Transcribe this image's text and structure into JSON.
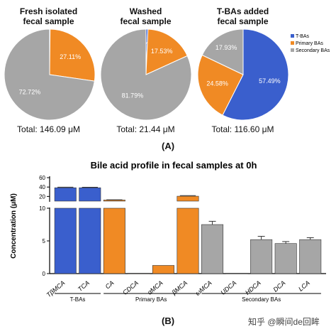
{
  "panel_a_label": "(A)",
  "panel_b_label": "(B)",
  "watermark": "知乎 @瞬间de回眸",
  "colors": {
    "tba": "#3a5fcd",
    "primary": "#f08a24",
    "secondary": "#a6a6a6"
  },
  "chart_data": [
    {
      "type": "pie",
      "title": "Fresh isolated\nfecal sample",
      "total": "Total: 146.09 μM",
      "slices": [
        {
          "name": "T-BAs",
          "value": 0.17,
          "label": "0.17%"
        },
        {
          "name": "Primary BAs",
          "value": 27.11,
          "label": "27.11%"
        },
        {
          "name": "Secondary BAs",
          "value": 72.72,
          "label": "72.72%"
        }
      ]
    },
    {
      "type": "pie",
      "title": "Washed\nfecal sample",
      "total": "Total: 21.44 μM",
      "slices": [
        {
          "name": "T-BAs",
          "value": 0.68,
          "label": "0.68%"
        },
        {
          "name": "Primary BAs",
          "value": 17.53,
          "label": "17.53%"
        },
        {
          "name": "Secondary BAs",
          "value": 81.79,
          "label": "81.79%"
        }
      ]
    },
    {
      "type": "pie",
      "title": "T-BAs added\nfecal sample",
      "total": "Total: 116.60 μM",
      "legend": [
        "T-BAs",
        "Primary BAs",
        "Secondary BAs"
      ],
      "slices": [
        {
          "name": "T-BAs",
          "value": 57.49,
          "label": "57.49%"
        },
        {
          "name": "Primary BAs",
          "value": 24.58,
          "label": "24.58%"
        },
        {
          "name": "Secondary BAs",
          "value": 17.93,
          "label": "17.93%"
        }
      ]
    },
    {
      "type": "bar",
      "title": "Bile acid profile in fecal samples at 0h",
      "ylabel": "Concentration (μM)",
      "yticks_lower": [
        0,
        5,
        10
      ],
      "yticks_upper": [
        20,
        40,
        60
      ],
      "ylim_lower": [
        0,
        10
      ],
      "ylim_upper": [
        10,
        60
      ],
      "categories": [
        "TβMCA",
        "TCA",
        "CA",
        "CDCA",
        "αMCA",
        "βMCA",
        "ωMCA",
        "UDCA",
        "HDCA",
        "DCA",
        "LCA"
      ],
      "values": [
        38.5,
        38.5,
        12.3,
        0.05,
        1.25,
        20.5,
        7.5,
        0.05,
        5.2,
        4.6,
        5.2
      ],
      "errors": [
        1.2,
        1.0,
        0.5,
        0.02,
        0.05,
        1.2,
        0.5,
        0.02,
        0.5,
        0.3,
        0.3
      ],
      "groups": [
        {
          "name": "T-BAs",
          "type": "tba",
          "start": 0,
          "end": 1
        },
        {
          "name": "Primary BAs",
          "type": "primary",
          "start": 2,
          "end": 5
        },
        {
          "name": "Secondary BAs",
          "type": "secondary",
          "start": 6,
          "end": 10
        }
      ]
    }
  ]
}
